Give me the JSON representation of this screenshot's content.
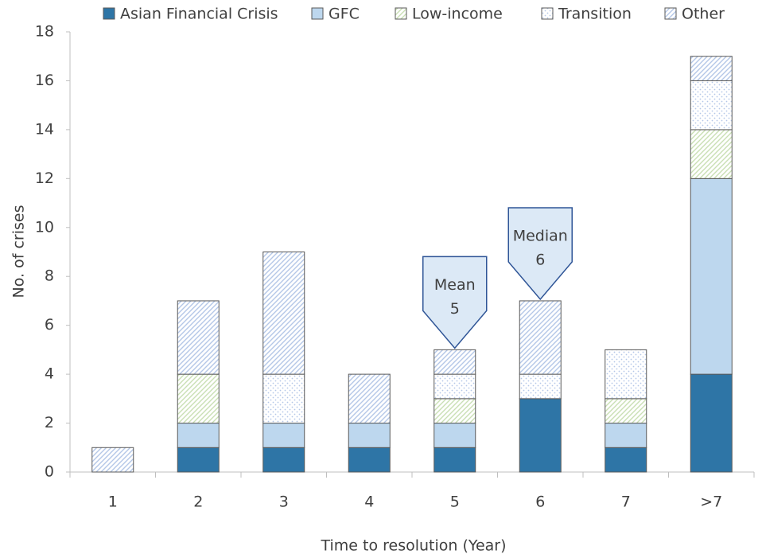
{
  "chart_data": {
    "type": "stacked_bar",
    "x_label": "Time to resolution (Year)",
    "y_label": "No. of crises",
    "categories": [
      "1",
      "2",
      "3",
      "4",
      "5",
      "6",
      "7",
      ">7"
    ],
    "series": [
      {
        "name": "Asian Financial Crisis",
        "color": "#2e75a6",
        "pattern": "solid",
        "values": [
          0,
          1,
          1,
          1,
          1,
          3,
          1,
          4
        ]
      },
      {
        "name": "GFC",
        "color": "#bdd7ee",
        "pattern": "solid",
        "values": [
          0,
          1,
          1,
          1,
          1,
          0,
          1,
          8
        ]
      },
      {
        "name": "Low-income",
        "color": "#c9dfb4",
        "pattern": "hatch",
        "values": [
          0,
          2,
          0,
          0,
          1,
          0,
          1,
          2
        ]
      },
      {
        "name": "Transition",
        "color": "#b4c7e7",
        "pattern": "dots",
        "values": [
          0,
          0,
          2,
          0,
          1,
          1,
          2,
          2
        ]
      },
      {
        "name": "Other",
        "color": "#b4c7e7",
        "pattern": "hatch",
        "values": [
          1,
          3,
          5,
          2,
          1,
          3,
          0,
          1
        ]
      }
    ],
    "annotations": [
      {
        "lines": [
          "Mean",
          "5"
        ]
      },
      {
        "lines": [
          "Median",
          "6"
        ]
      }
    ],
    "ylim": [
      0,
      18
    ],
    "yticks": [
      0,
      2,
      4,
      6,
      8,
      10,
      12,
      14,
      16,
      18
    ],
    "grid": false
  }
}
